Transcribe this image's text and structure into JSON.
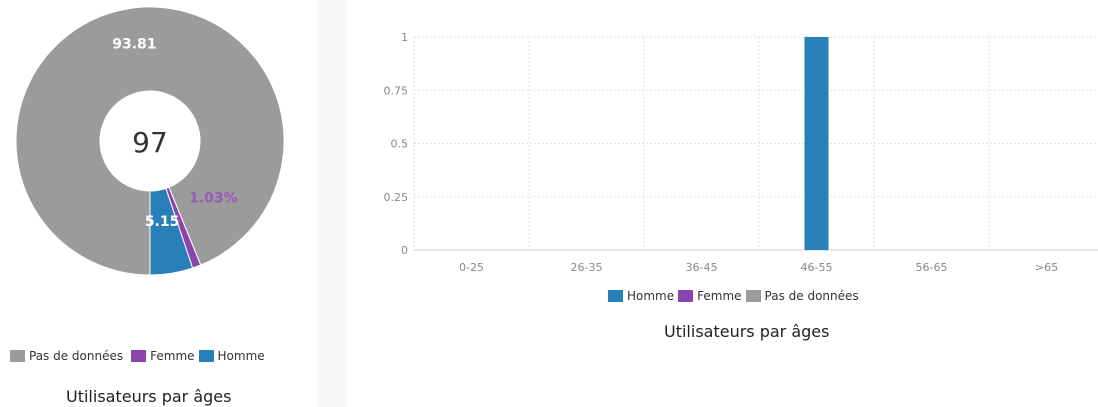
{
  "colors": {
    "pas_de_donnees": "#9b9b9b",
    "femme": "#8e44ad",
    "homme": "#2980b9"
  },
  "chart_data": [
    {
      "type": "pie",
      "center_label": "97",
      "title": "Utilisateurs par âges",
      "slices": [
        {
          "name": "Pas de données",
          "value": 93.81,
          "label": "93.81",
          "color": "#9b9b9b"
        },
        {
          "name": "Femme",
          "value": 1.03,
          "label": "1.03%",
          "color": "#8e44ad"
        },
        {
          "name": "Homme",
          "value": 5.15,
          "label": "5.15",
          "color": "#2980b9"
        }
      ],
      "legend": [
        "Pas de données",
        "Femme",
        "Homme"
      ],
      "legend_position": "bottom"
    },
    {
      "type": "bar",
      "title": "Utilisateurs par âges",
      "categories": [
        "0-25",
        "26-35",
        "36-45",
        "46-55",
        "56-65",
        ">65"
      ],
      "series": [
        {
          "name": "Homme",
          "values": [
            0,
            0,
            0,
            1,
            0,
            0
          ],
          "color": "#2980b9"
        },
        {
          "name": "Femme",
          "values": [
            0,
            0,
            0,
            0,
            0,
            0
          ],
          "color": "#8e44ad"
        },
        {
          "name": "Pas de données",
          "values": [
            0,
            0,
            0,
            0,
            0,
            0
          ],
          "color": "#9b9b9b"
        }
      ],
      "yticks": [
        "0",
        "0.25",
        "0.5",
        "0.75",
        "1"
      ],
      "ylim": [
        0,
        1
      ],
      "grid": true,
      "legend_position": "bottom"
    }
  ]
}
